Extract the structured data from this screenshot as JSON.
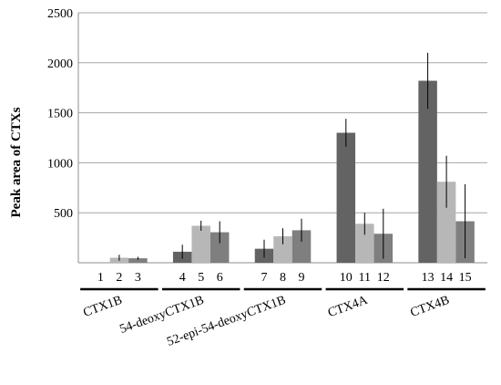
{
  "chart_data": {
    "type": "bar",
    "ylabel": "Peak area of CTXs",
    "xlabel": "",
    "ylim": [
      0,
      2500
    ],
    "yticks": [
      "500",
      "1000",
      "1500",
      "2000",
      "2500"
    ],
    "grid": true,
    "groups": [
      {
        "label": "CTX1B",
        "bars": [
          {
            "number": "1",
            "value": 0,
            "error": 0
          },
          {
            "number": "2",
            "value": 50,
            "error": 30
          },
          {
            "number": "3",
            "value": 45,
            "error": 15
          }
        ]
      },
      {
        "label": "54-deoxyCTX1B",
        "bars": [
          {
            "number": "4",
            "value": 110,
            "error": 70
          },
          {
            "number": "5",
            "value": 370,
            "error": 50
          },
          {
            "number": "6",
            "value": 305,
            "error": 110
          }
        ]
      },
      {
        "label": "52-epi-54-deoxyCTX1B",
        "bars": [
          {
            "number": "7",
            "value": 140,
            "error": 90
          },
          {
            "number": "8",
            "value": 265,
            "error": 80
          },
          {
            "number": "9",
            "value": 325,
            "error": 115
          }
        ]
      },
      {
        "label": "CTX4A",
        "bars": [
          {
            "number": "10",
            "value": 1300,
            "error": 140
          },
          {
            "number": "11",
            "value": 390,
            "error": 110
          },
          {
            "number": "12",
            "value": 290,
            "error": 250
          }
        ]
      },
      {
        "label": "CTX4B",
        "bars": [
          {
            "number": "13",
            "value": 1820,
            "error": 280
          },
          {
            "number": "14",
            "value": 810,
            "error": 260
          },
          {
            "number": "15",
            "value": 415,
            "error": 370
          }
        ]
      }
    ],
    "colors": [
      "#636363",
      "#b7b7b7",
      "#7f7f7f"
    ]
  }
}
